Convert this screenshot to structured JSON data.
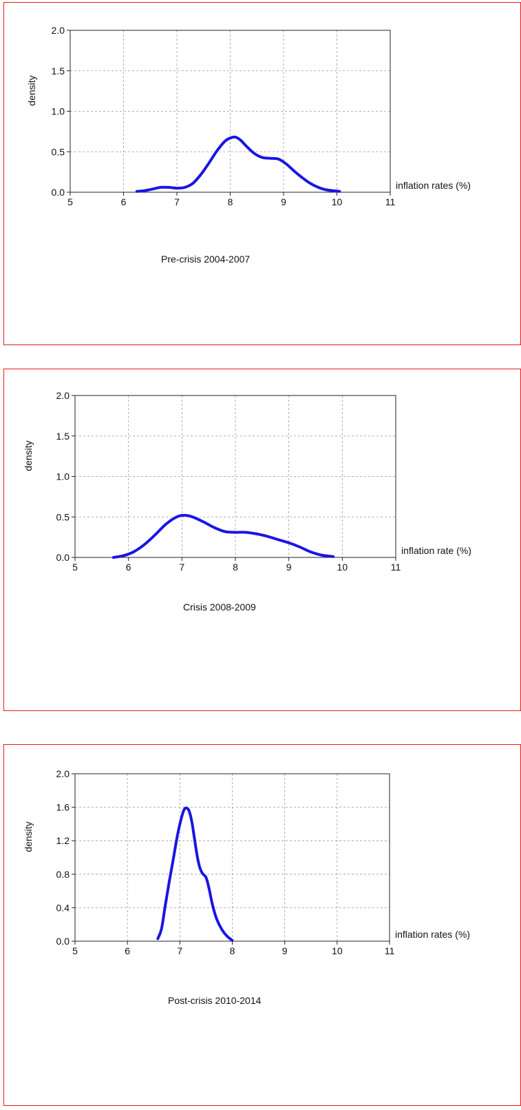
{
  "chart_data": [
    {
      "type": "line",
      "title": "Pre-crisis  2004-2007",
      "xlabel": "inflation rates (%)",
      "ylabel": "density",
      "xlim": [
        5,
        11
      ],
      "ylim": [
        0,
        2.0
      ],
      "xticks": [
        "5",
        "6",
        "7",
        "8",
        "9",
        "10",
        "11"
      ],
      "yticks": [
        "0.0",
        "0.5",
        "1.0",
        "1.5",
        "2.0"
      ],
      "grid": true,
      "legend": "none",
      "series_color": "#1a14e6",
      "x": [
        6.25,
        6.4,
        6.55,
        6.7,
        6.85,
        7.0,
        7.15,
        7.3,
        7.45,
        7.6,
        7.75,
        7.9,
        8.0,
        8.1,
        8.2,
        8.3,
        8.45,
        8.6,
        8.75,
        8.9,
        9.05,
        9.2,
        9.35,
        9.5,
        9.65,
        9.8,
        10.05
      ],
      "y": [
        0.01,
        0.02,
        0.04,
        0.06,
        0.06,
        0.05,
        0.06,
        0.11,
        0.22,
        0.36,
        0.51,
        0.63,
        0.67,
        0.68,
        0.64,
        0.57,
        0.48,
        0.43,
        0.42,
        0.41,
        0.35,
        0.26,
        0.18,
        0.11,
        0.06,
        0.03,
        0.01
      ]
    },
    {
      "type": "line",
      "title": "Crisis  2008-2009",
      "xlabel": "inflation rate (%)",
      "ylabel": "density",
      "xlim": [
        5,
        11
      ],
      "ylim": [
        0,
        2.0
      ],
      "xticks": [
        "5",
        "6",
        "7",
        "8",
        "9",
        "10",
        "11"
      ],
      "yticks": [
        "0.0",
        "0.5",
        "1.0",
        "1.5",
        "2.0"
      ],
      "grid": true,
      "legend": "none",
      "series_color": "#1a14e6",
      "x": [
        5.72,
        5.9,
        6.1,
        6.3,
        6.5,
        6.7,
        6.9,
        7.05,
        7.2,
        7.4,
        7.6,
        7.8,
        8.0,
        8.2,
        8.4,
        8.6,
        8.8,
        9.0,
        9.2,
        9.4,
        9.6,
        9.83
      ],
      "y": [
        0.0,
        0.02,
        0.07,
        0.16,
        0.28,
        0.41,
        0.5,
        0.52,
        0.5,
        0.44,
        0.37,
        0.32,
        0.31,
        0.31,
        0.29,
        0.26,
        0.22,
        0.18,
        0.13,
        0.07,
        0.03,
        0.01
      ]
    },
    {
      "type": "line",
      "title": "Post-crisis  2010-2014",
      "xlabel": "inflation rates (%)",
      "ylabel": "density",
      "xlim": [
        5,
        11
      ],
      "ylim": [
        0,
        2.0
      ],
      "xticks": [
        "5",
        "6",
        "7",
        "8",
        "9",
        "10",
        "11"
      ],
      "yticks": [
        "0.0",
        "0.4",
        "0.8",
        "1.2",
        "1.6",
        "2.0"
      ],
      "grid": true,
      "legend": "none",
      "series_color": "#1a14e6",
      "x": [
        6.58,
        6.65,
        6.72,
        6.8,
        6.88,
        6.95,
        7.02,
        7.08,
        7.13,
        7.18,
        7.23,
        7.28,
        7.33,
        7.38,
        7.43,
        7.5,
        7.56,
        7.62,
        7.7,
        7.8,
        7.9,
        8.0
      ],
      "y": [
        0.03,
        0.15,
        0.42,
        0.72,
        1.0,
        1.25,
        1.45,
        1.57,
        1.59,
        1.55,
        1.42,
        1.22,
        1.02,
        0.88,
        0.81,
        0.76,
        0.62,
        0.44,
        0.27,
        0.14,
        0.06,
        0.01
      ]
    }
  ]
}
